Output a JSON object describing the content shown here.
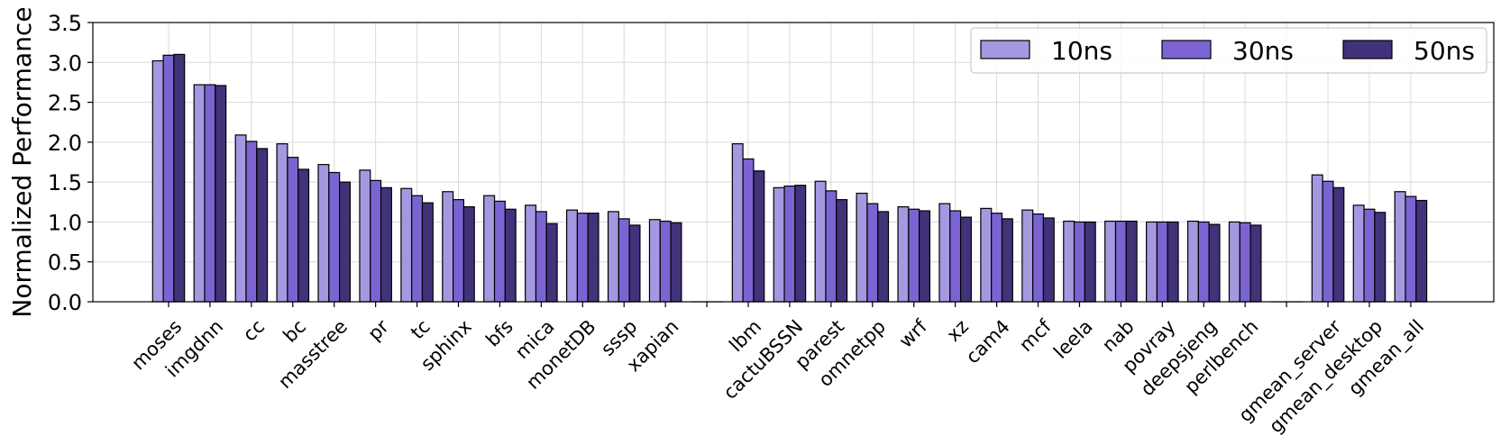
{
  "chart_data": {
    "type": "bar",
    "title": "",
    "xlabel": "",
    "ylabel": "Normalized Performance",
    "ylim": [
      0,
      3.5
    ],
    "yticks": [
      "0.0",
      "0.5",
      "1.0",
      "1.5",
      "2.0",
      "2.5",
      "3.0",
      "3.5"
    ],
    "grid": true,
    "legend_position": "top-right",
    "categories": [
      "moses",
      "imgdnn",
      "cc",
      "bc",
      "masstree",
      "pr",
      "tc",
      "sphinx",
      "bfs",
      "mica",
      "monetDB",
      "sssp",
      "xapian",
      "",
      "lbm",
      "cactuBSSN",
      "parest",
      "omnetpp",
      "wrf",
      "xz",
      "cam4",
      "mcf",
      "leela",
      "nab",
      "povray",
      "deepsjeng",
      "perlbench",
      "",
      "gmean_server",
      "gmean_desktop",
      "gmean_all"
    ],
    "series": [
      {
        "name": "10ns",
        "color": "#a499e0",
        "values": [
          3.02,
          2.72,
          2.09,
          1.98,
          1.72,
          1.65,
          1.42,
          1.38,
          1.33,
          1.21,
          1.15,
          1.13,
          1.03,
          0,
          1.98,
          1.43,
          1.51,
          1.36,
          1.19,
          1.23,
          1.17,
          1.15,
          1.01,
          1.01,
          1.0,
          1.01,
          1.0,
          0,
          1.59,
          1.21,
          1.38
        ]
      },
      {
        "name": "30ns",
        "color": "#7b64d2",
        "values": [
          3.09,
          2.72,
          2.01,
          1.81,
          1.62,
          1.52,
          1.33,
          1.28,
          1.26,
          1.13,
          1.11,
          1.04,
          1.01,
          0,
          1.79,
          1.45,
          1.39,
          1.23,
          1.16,
          1.14,
          1.11,
          1.1,
          1.0,
          1.01,
          1.0,
          1.0,
          0.99,
          0,
          1.51,
          1.16,
          1.32
        ]
      },
      {
        "name": "50ns",
        "color": "#41327a",
        "values": [
          3.1,
          2.71,
          1.92,
          1.66,
          1.5,
          1.43,
          1.24,
          1.19,
          1.16,
          0.98,
          1.11,
          0.96,
          0.99,
          0,
          1.64,
          1.46,
          1.28,
          1.13,
          1.14,
          1.06,
          1.04,
          1.05,
          1.0,
          1.01,
          1.0,
          0.97,
          0.96,
          0,
          1.43,
          1.12,
          1.27
        ]
      }
    ]
  }
}
